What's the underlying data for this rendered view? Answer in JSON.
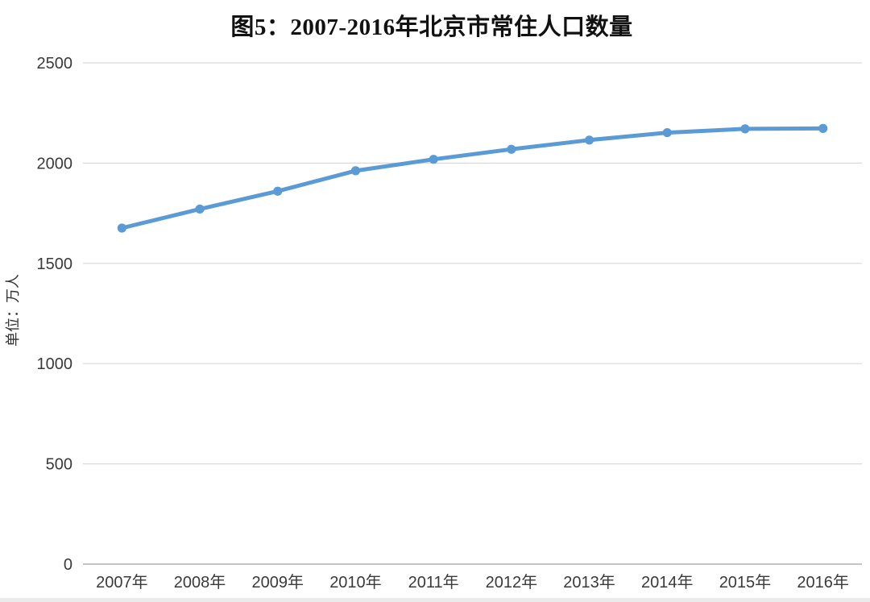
{
  "chart_data": {
    "type": "line",
    "title": "图5：2007-2016年北京市常住人口数量",
    "ylabel": "单位：万人",
    "xlabel": "",
    "categories": [
      "2007年",
      "2008年",
      "2009年",
      "2010年",
      "2011年",
      "2012年",
      "2013年",
      "2014年",
      "2015年",
      "2016年"
    ],
    "values": [
      1676,
      1771,
      1860,
      1962,
      2019,
      2069,
      2115,
      2152,
      2171,
      2173
    ],
    "ylim": [
      0,
      2500
    ],
    "yticks": [
      0,
      500,
      1000,
      1500,
      2000,
      2500
    ],
    "grid": "horizontal-only",
    "legend_position": "none",
    "marker": "circle",
    "line_color": "#5b9bd5",
    "gridline_color": "#d9d9d9",
    "axis_line_color": "#b0b0b0",
    "tick_label_color": "#3a3a3a",
    "ylabel_color": "#333333",
    "title_color": "#111111"
  }
}
